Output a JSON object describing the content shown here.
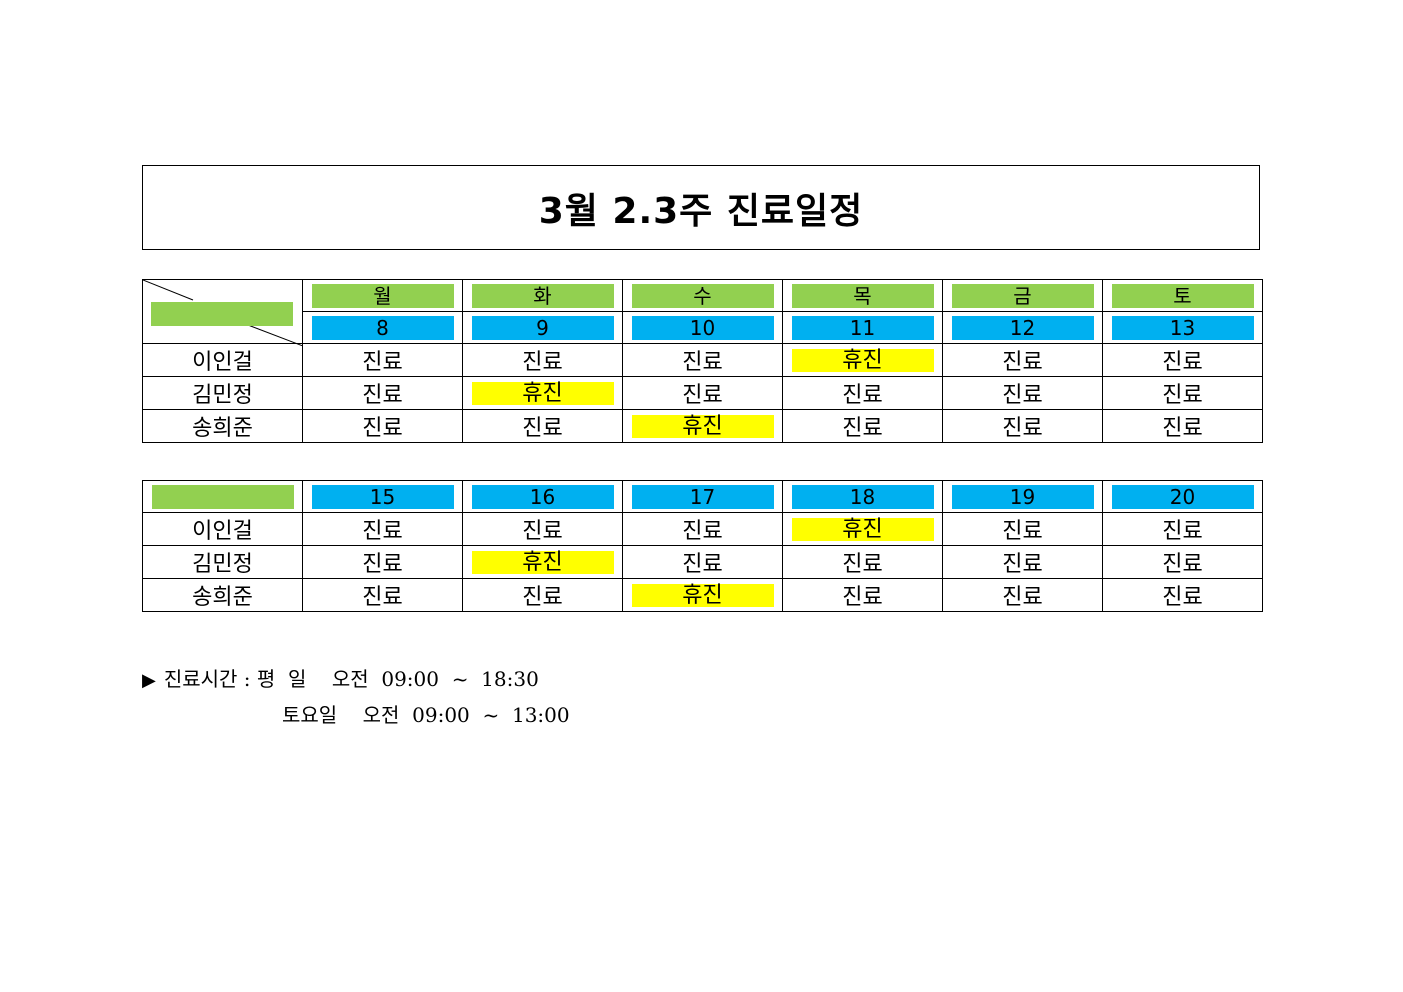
{
  "title": "3월  2.3주  진료일정",
  "week1": {
    "days": [
      "월",
      "화",
      "수",
      "목",
      "금",
      "토"
    ],
    "dates": [
      "8",
      "9",
      "10",
      "11",
      "12",
      "13"
    ],
    "rows": [
      {
        "name": "이인걸",
        "cells": [
          "진료",
          "진료",
          "진료",
          "휴진",
          "진료",
          "진료"
        ]
      },
      {
        "name": "김민정",
        "cells": [
          "진료",
          "휴진",
          "진료",
          "진료",
          "진료",
          "진료"
        ]
      },
      {
        "name": "송희준",
        "cells": [
          "진료",
          "진료",
          "휴진",
          "진료",
          "진료",
          "진료"
        ]
      }
    ]
  },
  "week2": {
    "dates": [
      "15",
      "16",
      "17",
      "18",
      "19",
      "20"
    ],
    "rows": [
      {
        "name": "이인걸",
        "cells": [
          "진료",
          "진료",
          "진료",
          "휴진",
          "진료",
          "진료"
        ]
      },
      {
        "name": "김민정",
        "cells": [
          "진료",
          "휴진",
          "진료",
          "진료",
          "진료",
          "진료"
        ]
      },
      {
        "name": "송희준",
        "cells": [
          "진료",
          "진료",
          "휴진",
          "진료",
          "진료",
          "진료"
        ]
      }
    ]
  },
  "notes": {
    "marker": "▶",
    "weekday": "진료시간 : 평  일    오전  09:00  ~  18:30",
    "saturday": "토요일    오전  09:00  ~  13:00"
  },
  "colors": {
    "day_header": "#92d050",
    "date_header": "#00b0f0",
    "closed": "#ffff00"
  },
  "closed_label": "휴진"
}
